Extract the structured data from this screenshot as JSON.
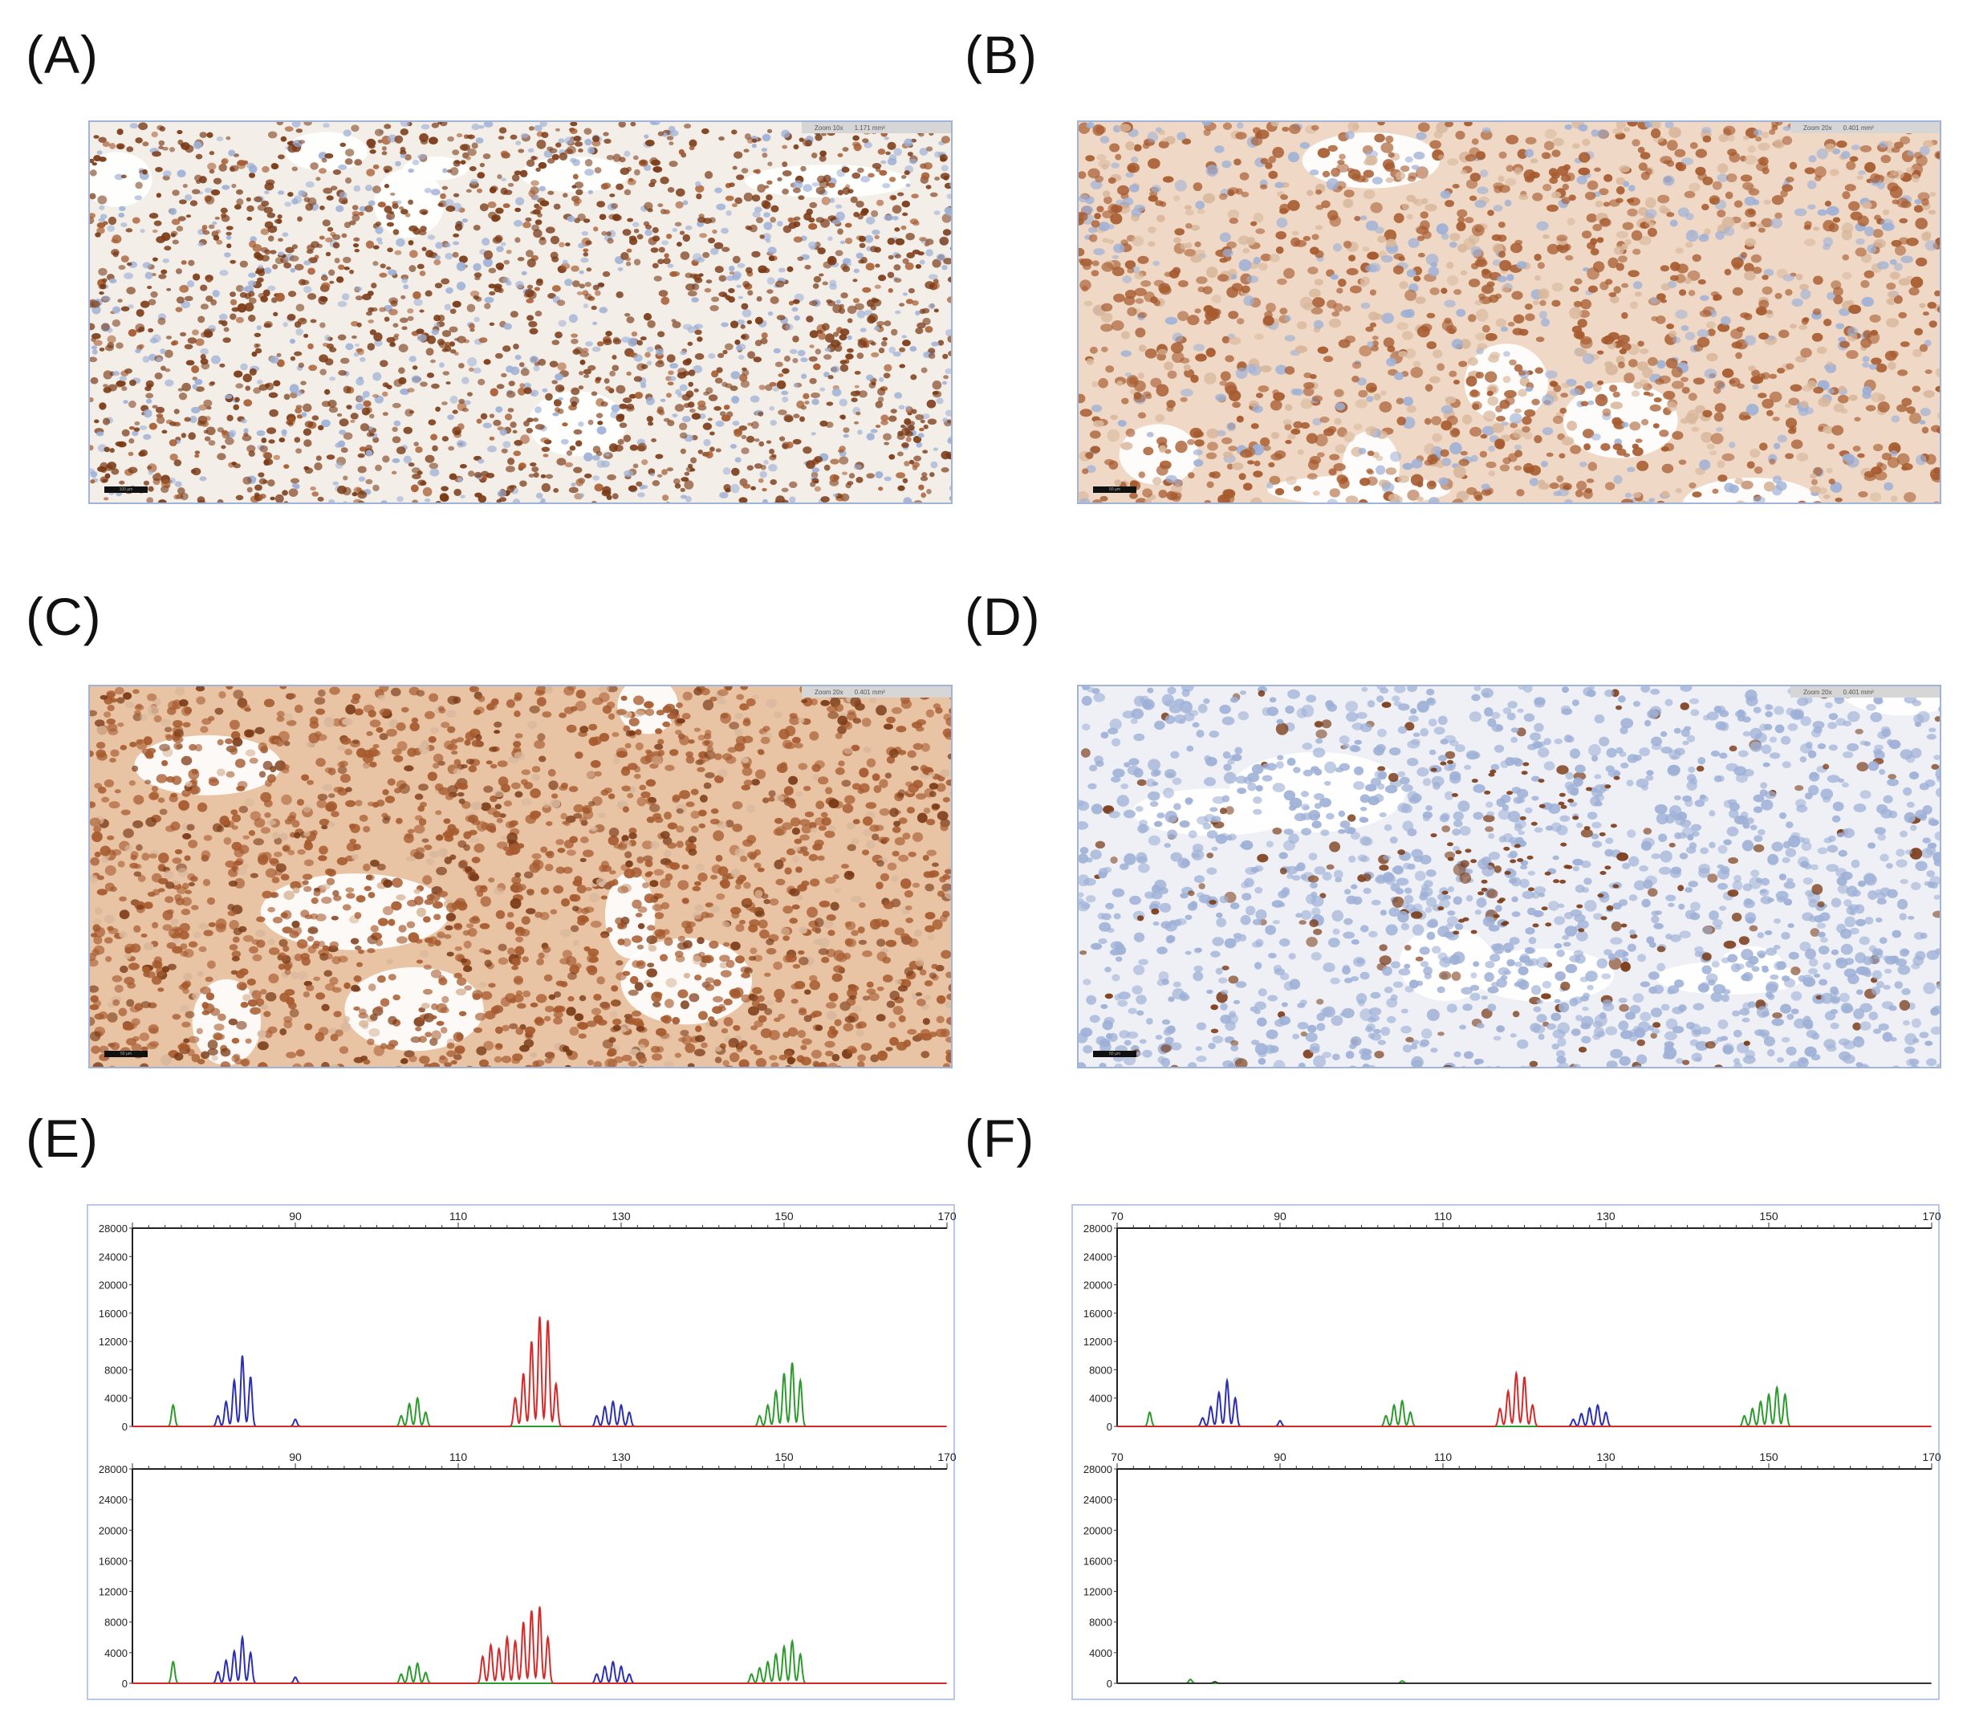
{
  "figure": {
    "panels": [
      {
        "label": "(A)",
        "type": "micrograph",
        "zoom_text": "Zoom 10x",
        "area_text": "1.171 mm²",
        "scale_text": "100 µm",
        "stain": "strong-nuclear"
      },
      {
        "label": "(B)",
        "type": "micrograph",
        "zoom_text": "Zoom 20x",
        "area_text": "0.401 mm²",
        "scale_text": "50 µm",
        "stain": "moderate-nuclear"
      },
      {
        "label": "(C)",
        "type": "micrograph",
        "zoom_text": "Zoom 20x",
        "area_text": "0.401 mm²",
        "scale_text": "50 µm",
        "stain": "diffuse-nuclear"
      },
      {
        "label": "(D)",
        "type": "micrograph",
        "zoom_text": "Zoom 20x",
        "area_text": "0.401 mm²",
        "scale_text": "50 µm",
        "stain": "loss"
      },
      {
        "label": "(E)",
        "type": "electropherogram"
      },
      {
        "label": "(F)",
        "type": "electropherogram"
      }
    ],
    "colors": {
      "brown_dark": "#7a3a16",
      "brown_mid": "#a65a2e",
      "brown_light": "#d8b79c",
      "hematoxylin": "#9eb0d6",
      "stroma": "#efe3d8",
      "trace_blue": "#2b2fb0",
      "trace_green": "#2c9a2c",
      "trace_red": "#d62a2a",
      "trace_black": "#333333",
      "frame_blue": "#9fb4d6"
    }
  },
  "chart_data": [
    {
      "panel": "(E)",
      "type": "line",
      "tracks": [
        {
          "name": "",
          "xlim": [
            70,
            170
          ],
          "x_ticks": [
            "90",
            "110",
            "130",
            "150",
            "170"
          ],
          "ylim": [
            0,
            28000
          ],
          "y_ticks": [
            "28000",
            "24000",
            "20000",
            "16000",
            "12000",
            "8000",
            "4000",
            "0"
          ],
          "series": [
            {
              "color": "blue",
              "peaks": [
                [
                  80.5,
                  1500
                ],
                [
                  81.5,
                  3500
                ],
                [
                  82.5,
                  6500
                ],
                [
                  83.5,
                  10000
                ],
                [
                  84.5,
                  7000
                ],
                [
                  90,
                  1000
                ],
                [
                  127,
                  1500
                ],
                [
                  128,
                  2800
                ],
                [
                  129,
                  3500
                ],
                [
                  130,
                  3000
                ],
                [
                  131,
                  2000
                ]
              ]
            },
            {
              "color": "green",
              "peaks": [
                [
                  75,
                  3000
                ],
                [
                  103,
                  1500
                ],
                [
                  104,
                  3200
                ],
                [
                  105,
                  4000
                ],
                [
                  106,
                  2000
                ],
                [
                  147,
                  1500
                ],
                [
                  148,
                  3000
                ],
                [
                  149,
                  5000
                ],
                [
                  150,
                  7500
                ],
                [
                  151,
                  9000
                ],
                [
                  152,
                  6500
                ]
              ]
            },
            {
              "color": "red",
              "peaks": [
                [
                  117,
                  4000
                ],
                [
                  118,
                  7500
                ],
                [
                  119,
                  12000
                ],
                [
                  120,
                  15500
                ],
                [
                  121,
                  15000
                ],
                [
                  122,
                  6000
                ]
              ]
            }
          ]
        },
        {
          "name": "",
          "xlim": [
            70,
            170
          ],
          "x_ticks": [
            "90",
            "110",
            "130",
            "150",
            "170"
          ],
          "ylim": [
            0,
            28000
          ],
          "y_ticks": [
            "28000",
            "24000",
            "20000",
            "16000",
            "12000",
            "8000",
            "4000",
            "0"
          ],
          "series": [
            {
              "color": "blue",
              "peaks": [
                [
                  80.5,
                  1500
                ],
                [
                  81.5,
                  3000
                ],
                [
                  82.5,
                  4200
                ],
                [
                  83.5,
                  6000
                ],
                [
                  84.5,
                  4000
                ],
                [
                  90,
                  800
                ],
                [
                  127,
                  1200
                ],
                [
                  128,
                  2200
                ],
                [
                  129,
                  2800
                ],
                [
                  130,
                  2200
                ],
                [
                  131,
                  1200
                ]
              ]
            },
            {
              "color": "green",
              "peaks": [
                [
                  75,
                  2800
                ],
                [
                  103,
                  1200
                ],
                [
                  104,
                  2200
                ],
                [
                  105,
                  2600
                ],
                [
                  106,
                  1400
                ],
                [
                  146,
                  1200
                ],
                [
                  147,
                  2000
                ],
                [
                  148,
                  2800
                ],
                [
                  149,
                  3800
                ],
                [
                  150,
                  4800
                ],
                [
                  151,
                  5500
                ],
                [
                  152,
                  3800
                ]
              ]
            },
            {
              "color": "red",
              "peaks": [
                [
                  113,
                  3500
                ],
                [
                  114,
                  5000
                ],
                [
                  115,
                  4500
                ],
                [
                  116,
                  6000
                ],
                [
                  117,
                  5500
                ],
                [
                  118,
                  8000
                ],
                [
                  119,
                  9500
                ],
                [
                  120,
                  10000
                ],
                [
                  121,
                  6000
                ]
              ]
            }
          ]
        }
      ]
    },
    {
      "panel": "(F)",
      "type": "line",
      "tracks": [
        {
          "name": "",
          "xlim": [
            70,
            170
          ],
          "x_ticks": [
            "70",
            "90",
            "110",
            "130",
            "150",
            "170"
          ],
          "ylim": [
            0,
            28000
          ],
          "y_ticks": [
            "28000",
            "24000",
            "20000",
            "16000",
            "12000",
            "8000",
            "4000",
            "0"
          ],
          "series": [
            {
              "color": "blue",
              "peaks": [
                [
                  80.5,
                  1200
                ],
                [
                  81.5,
                  2800
                ],
                [
                  82.5,
                  4800
                ],
                [
                  83.5,
                  6500
                ],
                [
                  84.5,
                  4000
                ],
                [
                  90,
                  800
                ],
                [
                  126,
                  1000
                ],
                [
                  127,
                  1800
                ],
                [
                  128,
                  2600
                ],
                [
                  129,
                  3000
                ],
                [
                  130,
                  2000
                ]
              ]
            },
            {
              "color": "green",
              "peaks": [
                [
                  74,
                  2000
                ],
                [
                  103,
                  1500
                ],
                [
                  104,
                  3000
                ],
                [
                  105,
                  3600
                ],
                [
                  106,
                  2000
                ],
                [
                  147,
                  1500
                ],
                [
                  148,
                  2500
                ],
                [
                  149,
                  3500
                ],
                [
                  150,
                  4500
                ],
                [
                  151,
                  5500
                ],
                [
                  152,
                  4500
                ]
              ]
            },
            {
              "color": "red",
              "peaks": [
                [
                  117,
                  2500
                ],
                [
                  118,
                  5000
                ],
                [
                  119,
                  7500
                ],
                [
                  120,
                  7000
                ],
                [
                  121,
                  3000
                ]
              ]
            }
          ]
        },
        {
          "name": "",
          "xlim": [
            70,
            170
          ],
          "x_ticks": [
            "70",
            "90",
            "110",
            "130",
            "150",
            "170"
          ],
          "ylim": [
            0,
            28000
          ],
          "y_ticks": [
            "28000",
            "24000",
            "20000",
            "16000",
            "12000",
            "8000",
            "4000",
            "0"
          ],
          "series": [
            {
              "color": "green",
              "peaks": [
                [
                  79,
                  500
                ],
                [
                  105,
                  300
                ]
              ]
            },
            {
              "color": "black",
              "peaks": [
                [
                  82,
                  200
                ]
              ]
            }
          ]
        }
      ]
    }
  ]
}
